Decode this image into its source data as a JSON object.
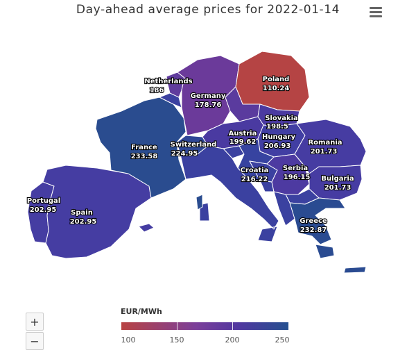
{
  "title": "Day-ahead average prices for 2022-01-14",
  "menu_icon": "hamburger-menu-icon",
  "zoom": {
    "in_label": "+",
    "out_label": "−"
  },
  "legend": {
    "title": "EUR/MWh",
    "min": 100,
    "max": 250,
    "ticks": [
      "100",
      "150",
      "200",
      "250"
    ],
    "colors": [
      "#b84343",
      "#7b3f9a",
      "#5137a0",
      "#25508f"
    ]
  },
  "countries": [
    {
      "id": "poland",
      "name": "Poland",
      "price": "110.24",
      "color": "#b54444"
    },
    {
      "id": "germany",
      "name": "Germany",
      "price": "178.76",
      "color": "#6b3a9a"
    },
    {
      "id": "netherlands",
      "name": "Netherlands",
      "price": "186",
      "color": "#603c9d"
    },
    {
      "id": "france",
      "name": "France",
      "price": "233.58",
      "color": "#2a4c8f"
    },
    {
      "id": "switzerland",
      "name": "Switzerland",
      "price": "224.95",
      "color": "#2f4796"
    },
    {
      "id": "austria",
      "name": "Austria",
      "price": "199.62",
      "color": "#4a3aa1"
    },
    {
      "id": "slovakia",
      "name": "Slovakia",
      "price": "198.5",
      "color": "#4b3aa1"
    },
    {
      "id": "hungary",
      "name": "Hungary",
      "price": "206.93",
      "color": "#413ea3"
    },
    {
      "id": "croatia",
      "name": "Croatia",
      "price": "216.22",
      "color": "#3743a0"
    },
    {
      "id": "serbia",
      "name": "Serbia",
      "price": "196.15",
      "color": "#4d3aa1"
    },
    {
      "id": "romania",
      "name": "Romania",
      "price": "201.73",
      "color": "#463ca2"
    },
    {
      "id": "bulgaria",
      "name": "Bulgaria",
      "price": "201.73",
      "color": "#463ca2"
    },
    {
      "id": "greece",
      "name": "Greece",
      "price": "232.87",
      "color": "#2a4b91"
    },
    {
      "id": "spain",
      "name": "Spain",
      "price": "202.95",
      "color": "#453da2"
    },
    {
      "id": "portugal",
      "name": "Portugal",
      "price": "202.95",
      "color": "#453da2"
    },
    {
      "id": "italy",
      "name": "",
      "price": "",
      "color": "#3b41a0"
    },
    {
      "id": "belgium",
      "name": "",
      "price": "",
      "color": "#3b41a0"
    },
    {
      "id": "czechia",
      "name": "",
      "price": "",
      "color": "#5a3b9e"
    },
    {
      "id": "slovenia",
      "name": "",
      "price": "",
      "color": "#3b41a0"
    },
    {
      "id": "bosnia",
      "name": "",
      "price": "",
      "color": "#3b41a0"
    },
    {
      "id": "montenegro",
      "name": "",
      "price": "",
      "color": "#3b41a0"
    },
    {
      "id": "macedonia",
      "name": "",
      "price": "",
      "color": "#3b41a0"
    },
    {
      "id": "albania",
      "name": "",
      "price": "",
      "color": "#3b41a0"
    },
    {
      "id": "corsica",
      "name": "",
      "price": "",
      "color": "#2a4c8f"
    },
    {
      "id": "mallorca",
      "name": "",
      "price": "",
      "color": "#453da2"
    }
  ]
}
